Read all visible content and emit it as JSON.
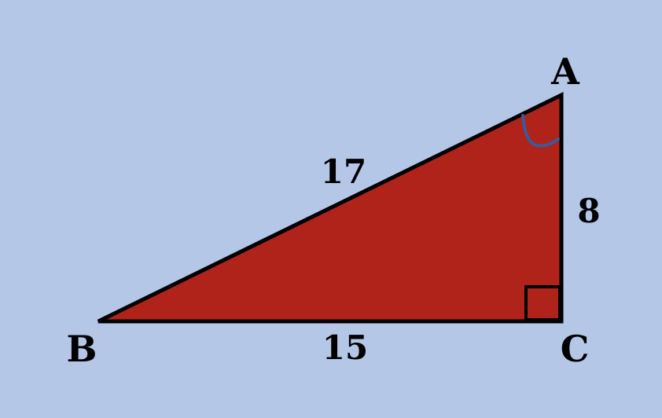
{
  "colors": {
    "background": "#b4c7e7",
    "triangle_fill": "#b0231a",
    "stroke": "#000000",
    "angle_arc": "#3a5a9a"
  },
  "vertices": {
    "a": "A",
    "b": "B",
    "c": "C"
  },
  "sides": {
    "hypotenuse_ab": "17",
    "base_bc": "15",
    "height_ac": "8"
  },
  "marks": {
    "right_angle_at": "C",
    "angle_arc_at": "A"
  }
}
